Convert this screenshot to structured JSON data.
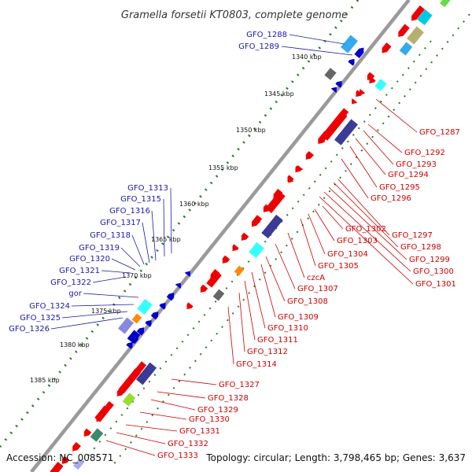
{
  "title": "Gramella forsetii KT0803, complete genome",
  "footer": {
    "accession": "Accession: NC_008571",
    "info": "Topology: circular; Length: 3,798,465 bp; Genes: 3,637"
  },
  "scale": [
    "1340 kbp",
    "1345 kbp",
    "1350 kbp",
    "1355 kbp",
    "1360 kbp",
    "1365 kbp",
    "1370 kbp",
    "1375 kbp",
    "1380 kbp",
    "1385 kbp"
  ],
  "labels_left": [
    "GFO_1288",
    "GFO_1289",
    "GFO_1313",
    "GFO_1315",
    "GFO_1316",
    "GFO_1317",
    "GFO_1318",
    "GFO_1319",
    "GFO_1320",
    "GFO_1321",
    "GFO_1322",
    "gor",
    "GFO_1324",
    "GFO_1325",
    "GFO_1326"
  ],
  "labels_right": [
    "GFO_1287",
    "GFO_1292",
    "GFO_1293",
    "GFO_1294",
    "GFO_1295",
    "GFO_1296",
    "GFO_1297",
    "GFO_1298",
    "GFO_1299",
    "GFO_1300",
    "GFO_1301",
    "GFO_1302",
    "GFO_1303",
    "GFO_1304",
    "GFO_1305",
    "czcA",
    "GFO_1307",
    "GFO_1308",
    "GFO_1309",
    "GFO_1310",
    "GFO_1311",
    "GFO_1312",
    "GFO_1314",
    "GFO_1327",
    "GFO_1328",
    "GFO_1329",
    "GFO_1330",
    "GFO_1331",
    "GFO_1332",
    "GFO_1333"
  ],
  "colors": {
    "backbone": "#9a9a9a",
    "forward_gene": "#ee0000",
    "reverse_gene": "#0000cc",
    "label_left": "#1a1aa6",
    "label_right": "#cc0000",
    "scale_dot": "#2a7a2a"
  }
}
